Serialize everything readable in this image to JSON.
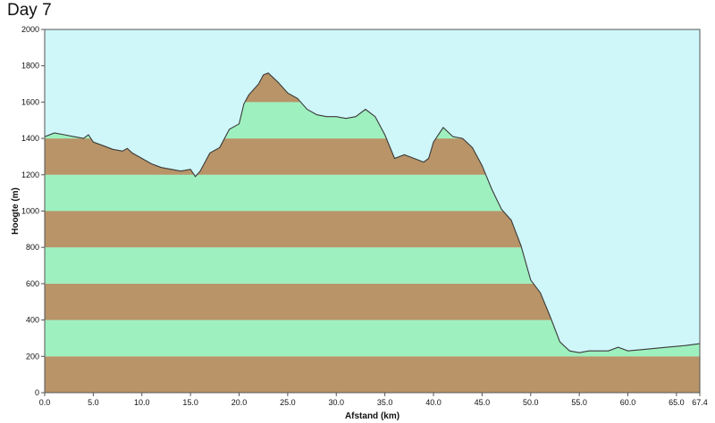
{
  "title": "Day 7",
  "colors": {
    "sky": "#cff7fa",
    "band_brown": "#b89468",
    "band_green": "#9ef0bf",
    "profile_line": "#3a3a3a",
    "frame": "#555555"
  },
  "chart_data": {
    "type": "area",
    "title": "Day 7",
    "xlabel": "Afstand  (km)",
    "ylabel": "Hoogte (m)",
    "xlim": [
      0,
      67.4
    ],
    "ylim": [
      0,
      2000
    ],
    "xticks": [
      "0.0",
      "5.0",
      "10.0",
      "15.0",
      "20.0",
      "25.0",
      "30.0",
      "35.0",
      "40.0",
      "45.0",
      "50.0",
      "55.0",
      "60.0",
      "65.0",
      "67.4"
    ],
    "yticks": [
      "0",
      "200",
      "400",
      "600",
      "800",
      "1000",
      "1200",
      "1400",
      "1600",
      "1800",
      "2000"
    ],
    "band_interval": 200,
    "grid": false,
    "series": [
      {
        "x": [
          0,
          1,
          2,
          3,
          4,
          4.5,
          5,
          6,
          7,
          8,
          8.5,
          9,
          10,
          11,
          12,
          13,
          14,
          15,
          15.5,
          16,
          17,
          18,
          19,
          20,
          20.5,
          21,
          22,
          22.5,
          23,
          24,
          25,
          26,
          27,
          28,
          29,
          30,
          31,
          32,
          33,
          34,
          35,
          36,
          37,
          38,
          39,
          39.5,
          40,
          41,
          42,
          43,
          44,
          45,
          46,
          47,
          48,
          49,
          50,
          51,
          52,
          53,
          54,
          55,
          56,
          57,
          58,
          59,
          60,
          62,
          64,
          66,
          67.4
        ],
        "y": [
          1410,
          1430,
          1420,
          1410,
          1400,
          1420,
          1380,
          1360,
          1340,
          1330,
          1345,
          1320,
          1290,
          1260,
          1240,
          1230,
          1220,
          1230,
          1190,
          1220,
          1320,
          1350,
          1450,
          1480,
          1590,
          1640,
          1700,
          1750,
          1760,
          1710,
          1650,
          1620,
          1560,
          1530,
          1520,
          1520,
          1510,
          1520,
          1560,
          1520,
          1420,
          1290,
          1310,
          1290,
          1270,
          1290,
          1380,
          1460,
          1410,
          1400,
          1350,
          1250,
          1120,
          1010,
          950,
          810,
          620,
          550,
          420,
          280,
          230,
          220,
          230,
          230,
          230,
          250,
          230,
          240,
          250,
          260,
          270
        ]
      }
    ]
  }
}
